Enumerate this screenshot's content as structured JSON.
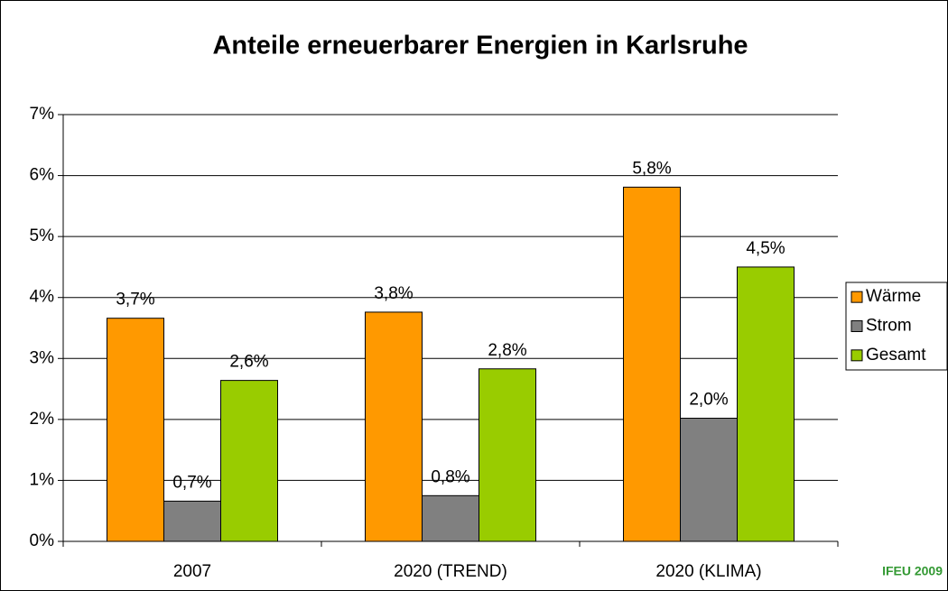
{
  "chart_data": {
    "type": "bar",
    "title": "Anteile erneuerbarer Energien in Karlsruhe",
    "annotation": "IFEU 2009",
    "categories": [
      "2007",
      "2020 (TREND)",
      "2020 (KLIMA)"
    ],
    "series": [
      {
        "name": "Wärme",
        "color": "#ff9900",
        "values": [
          3.66,
          3.76,
          5.81
        ],
        "value_labels": [
          "3,7%",
          "3,8%",
          "5,8%"
        ]
      },
      {
        "name": "Strom",
        "color": "#808080",
        "values": [
          0.66,
          0.75,
          2.02
        ],
        "value_labels": [
          "0,7%",
          "0,8%",
          "2,0%"
        ]
      },
      {
        "name": "Gesamt",
        "color": "#99cc00",
        "values": [
          2.64,
          2.83,
          4.5
        ],
        "value_labels": [
          "2,6%",
          "2,8%",
          "4,5%"
        ]
      }
    ],
    "ylim": [
      0,
      7
    ],
    "yticks": [
      {
        "value": 0,
        "label": "0%"
      },
      {
        "value": 1,
        "label": "1%"
      },
      {
        "value": 2,
        "label": "2%"
      },
      {
        "value": 3,
        "label": "3%"
      },
      {
        "value": 4,
        "label": "4%"
      },
      {
        "value": 5,
        "label": "5%"
      },
      {
        "value": 6,
        "label": "6%"
      },
      {
        "value": 7,
        "label": "7%"
      }
    ],
    "grid": true,
    "legend": "right"
  }
}
